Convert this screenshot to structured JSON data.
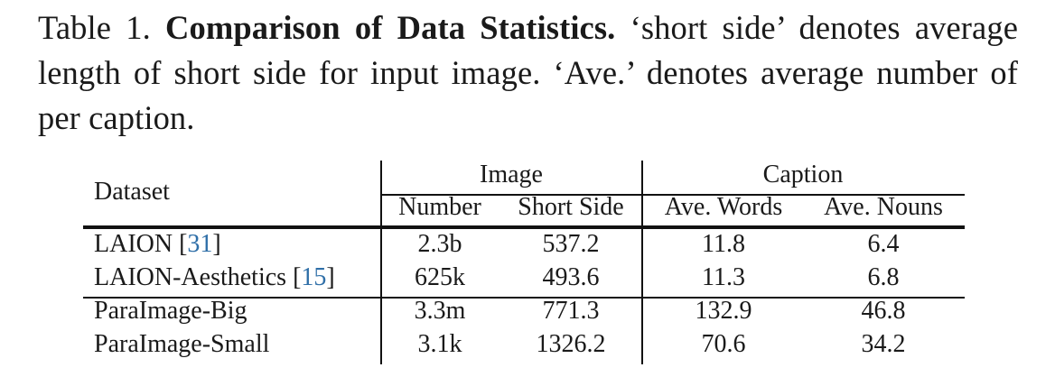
{
  "caption": {
    "label": "Table 1.",
    "title": "Comparison of Data Statistics.",
    "text": "‘short side’ denotes average length of short side for input image. ‘Ave.’ denotes average number of per caption."
  },
  "table": {
    "header": {
      "dataset": "Dataset",
      "group_image": "Image",
      "group_caption": "Caption",
      "number": "Number",
      "short_side": "Short Side",
      "ave_words": "Ave. Words",
      "ave_nouns": "Ave. Nouns"
    },
    "rows": [
      {
        "name": "LAION",
        "ref": "31",
        "number": "2.3b",
        "short_side": "537.2",
        "ave_words": "11.8",
        "ave_nouns": "6.4"
      },
      {
        "name": "LAION-Aesthetics",
        "ref": "15",
        "number": "625k",
        "short_side": "493.6",
        "ave_words": "11.3",
        "ave_nouns": "6.8"
      },
      {
        "name": "ParaImage-Big",
        "ref": "",
        "number": "3.3m",
        "short_side": "771.3",
        "ave_words": "132.9",
        "ave_nouns": "46.8"
      },
      {
        "name": "ParaImage-Small",
        "ref": "",
        "number": "3.1k",
        "short_side": "1326.2",
        "ave_words": "70.6",
        "ave_nouns": "34.2"
      }
    ]
  }
}
